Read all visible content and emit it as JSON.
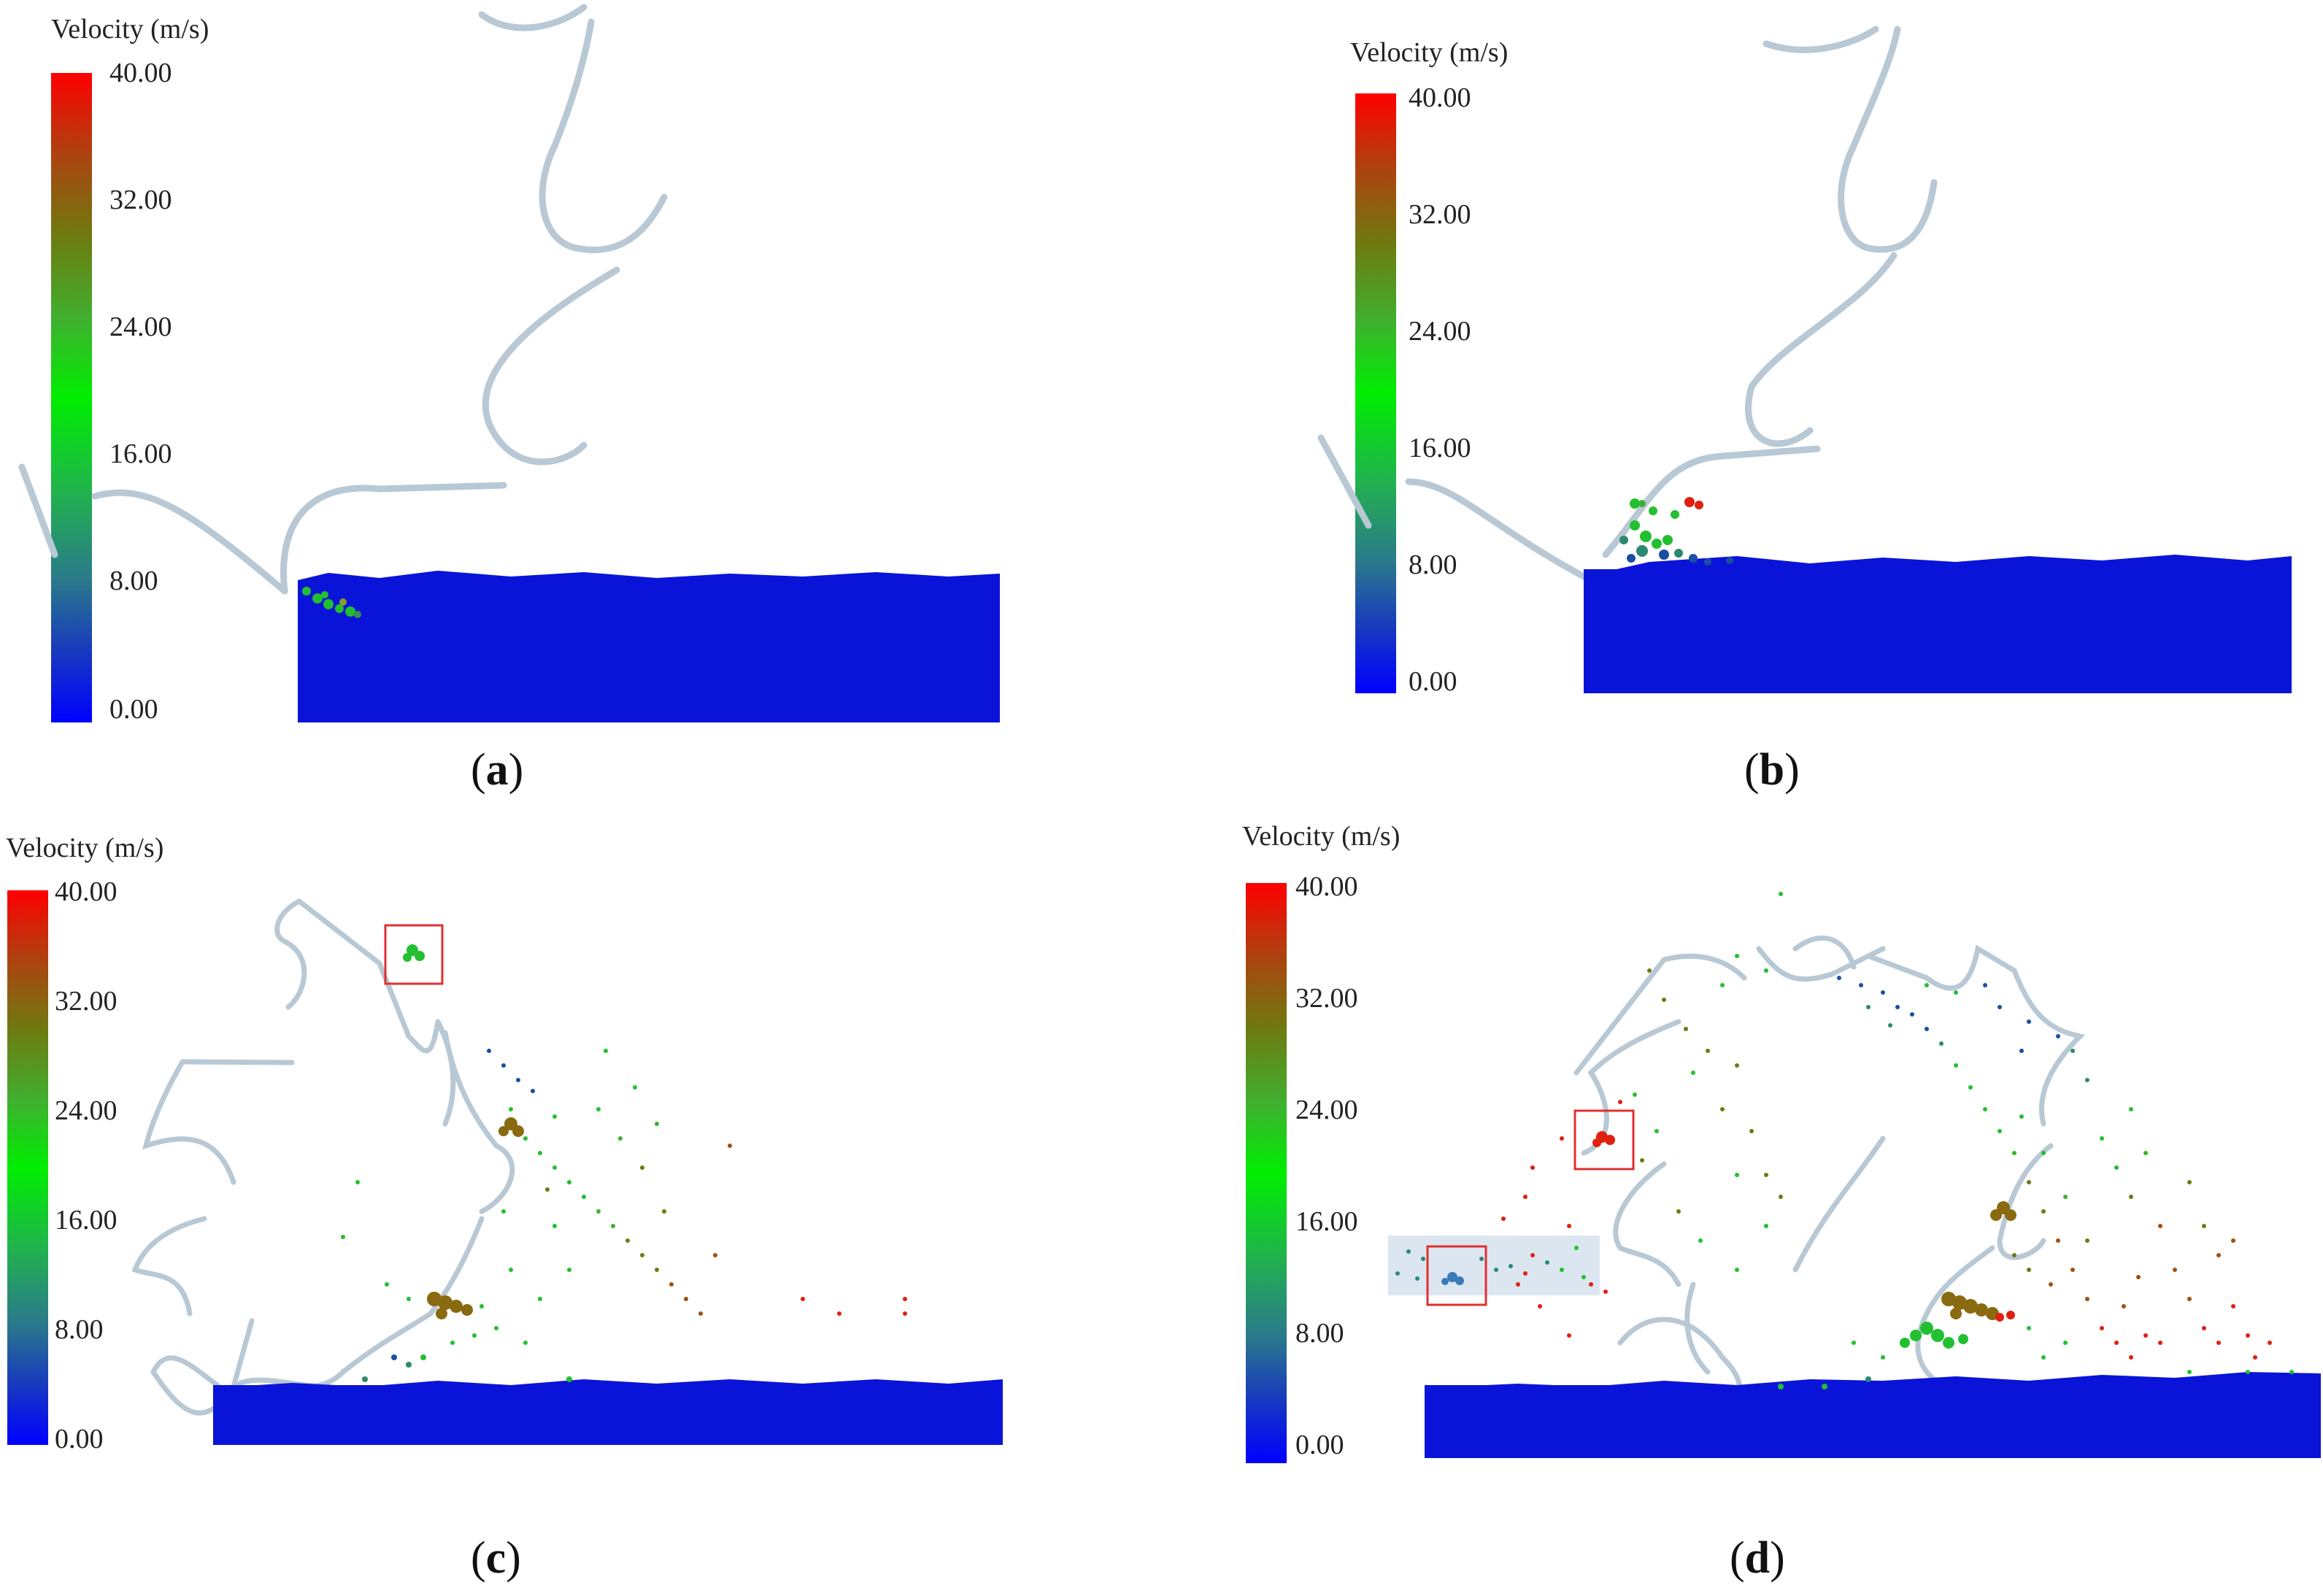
{
  "panels": [
    {
      "id": "a",
      "caption_open": "(",
      "caption_letter": "a",
      "caption_close": ")",
      "colorbar": {
        "title": "Velocity (m/s)",
        "ticks": [
          "40.00",
          "32.00",
          "24.00",
          "16.00",
          "8.00",
          "0.00"
        ]
      }
    },
    {
      "id": "b",
      "caption_open": "(",
      "caption_letter": "b",
      "caption_close": ")",
      "colorbar": {
        "title": "Velocity (m/s)",
        "ticks": [
          "40.00",
          "32.00",
          "24.00",
          "16.00",
          "8.00",
          "0.00"
        ]
      }
    },
    {
      "id": "c",
      "caption_open": "(",
      "caption_letter": "c",
      "caption_close": ")",
      "colorbar": {
        "title": "Velocity (m/s)",
        "ticks": [
          "40.00",
          "32.00",
          "24.00",
          "16.00",
          "8.00",
          "0.00"
        ]
      }
    },
    {
      "id": "d",
      "caption_open": "(",
      "caption_letter": "d",
      "caption_close": ")",
      "colorbar": {
        "title": "Velocity (m/s)",
        "ticks": [
          "40.00",
          "32.00",
          "24.00",
          "16.00",
          "8.00",
          "0.00"
        ]
      }
    }
  ],
  "colors": {
    "bed": "#0a14d8",
    "blade": "#b8c8d4",
    "highlight_box": "#e03030",
    "highlight_band": "#dce6f0",
    "particle_low": "#1a4fa0",
    "particle_mid": "#22c030",
    "particle_high": "#a05010",
    "particle_max": "#e02010"
  }
}
